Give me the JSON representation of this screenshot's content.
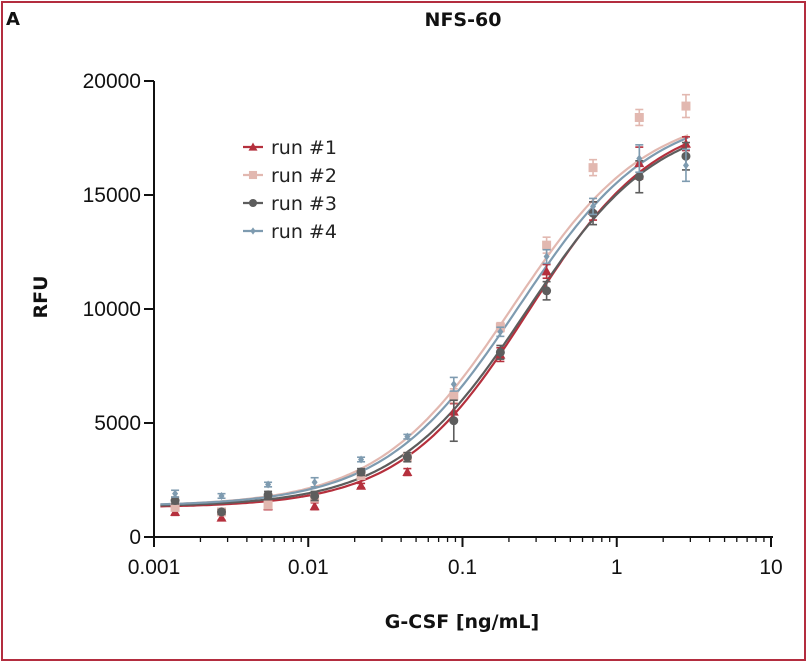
{
  "panel_letter": "A",
  "chart_data": {
    "type": "scatter",
    "title": "NFS-60",
    "xlabel": "G-CSF [ng/mL]",
    "ylabel": "RFU",
    "x_scale": "log",
    "xlim": [
      0.001,
      10
    ],
    "ylim": [
      0,
      20000
    ],
    "x_ticks": [
      0.001,
      0.01,
      0.1,
      1,
      10
    ],
    "x_tick_labels": [
      "0.001",
      "0.01",
      "0.1",
      "1",
      "10"
    ],
    "y_ticks": [
      0,
      5000,
      10000,
      15000,
      20000
    ],
    "y_tick_labels": [
      "0",
      "5000",
      "10000",
      "15000",
      "20000"
    ],
    "grid": false,
    "legend_position": "top-left",
    "x": [
      0.00137,
      0.00274,
      0.00549,
      0.011,
      0.022,
      0.0439,
      0.0878,
      0.176,
      0.351,
      0.702,
      1.4,
      2.81
    ],
    "series": [
      {
        "name": "run #1",
        "color": "#b5303d",
        "marker": "triangle",
        "values": [
          1100,
          850,
          1350,
          1350,
          2250,
          2850,
          5500,
          8000,
          11650,
          14300,
          16400,
          17250
        ],
        "errors": [
          150,
          100,
          150,
          150,
          100,
          150,
          350,
          300,
          300,
          400,
          700,
          300
        ],
        "fit": {
          "bottom": 1290,
          "top": 18600,
          "ec50": 0.27,
          "hill": 1.05
        }
      },
      {
        "name": "run #2",
        "color": "#e2b8b0",
        "marker": "square",
        "values": [
          1300,
          1100,
          1400,
          1700,
          2700,
          3500,
          6200,
          9200,
          12800,
          16200,
          18400,
          18900
        ],
        "errors": [
          150,
          100,
          150,
          150,
          150,
          200,
          300,
          200,
          350,
          350,
          350,
          500
        ],
        "fit": {
          "bottom": 1340,
          "top": 18800,
          "ec50": 0.21,
          "hill": 1.0
        }
      },
      {
        "name": "run #3",
        "color": "#5d5d5d",
        "marker": "circle",
        "values": [
          1600,
          1100,
          1850,
          1800,
          2850,
          3500,
          5100,
          8100,
          10800,
          14200,
          15800,
          16700
        ],
        "errors": [
          150,
          100,
          150,
          200,
          150,
          200,
          900,
          300,
          400,
          500,
          700,
          600
        ],
        "fit": {
          "bottom": 1320,
          "top": 18500,
          "ec50": 0.26,
          "hill": 1.02
        }
      },
      {
        "name": "run #4",
        "color": "#7e9bb0",
        "marker": "diamond",
        "values": [
          1900,
          1800,
          2300,
          2400,
          3400,
          4400,
          6700,
          9000,
          12300,
          14500,
          16600,
          16300
        ],
        "errors": [
          150,
          100,
          100,
          200,
          100,
          100,
          300,
          200,
          300,
          350,
          600,
          700
        ],
        "fit": {
          "bottom": 1350,
          "top": 18800,
          "ec50": 0.23,
          "hill": 1.0
        }
      }
    ]
  }
}
